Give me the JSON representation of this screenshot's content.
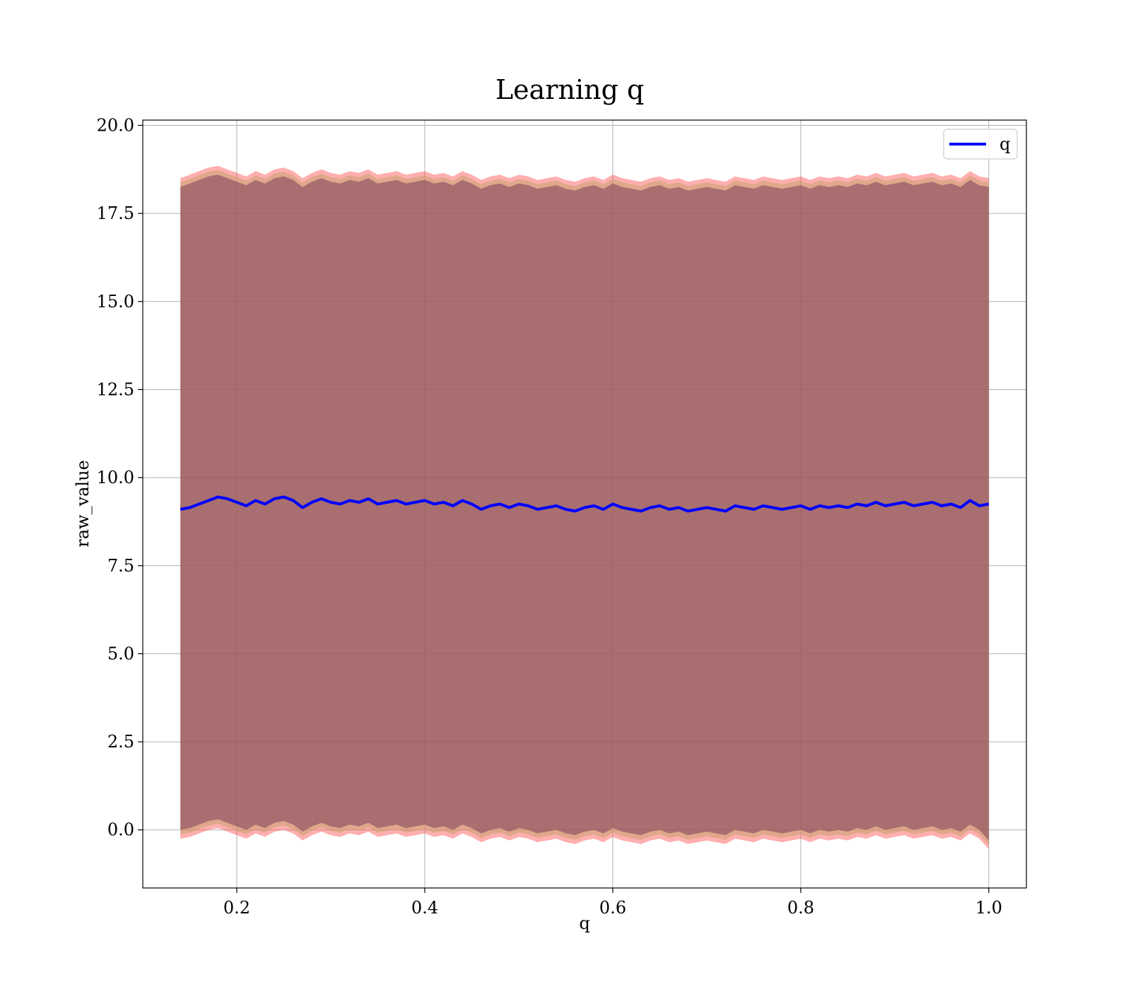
{
  "chart_data": {
    "type": "line",
    "title": "Learning q",
    "xlabel": "q",
    "ylabel": "raw_value",
    "xlim": [
      0.1,
      1.04
    ],
    "ylim": [
      -1.65,
      20.15
    ],
    "xticks": [
      0.2,
      0.4,
      0.6,
      0.8,
      1.0
    ],
    "xtick_labels": [
      "0.2",
      "0.4",
      "0.6",
      "0.8",
      "1.0"
    ],
    "yticks": [
      0.0,
      2.5,
      5.0,
      7.5,
      10.0,
      12.5,
      15.0,
      17.5,
      20.0
    ],
    "ytick_labels": [
      "0.0",
      "2.5",
      "5.0",
      "7.5",
      "10.0",
      "12.5",
      "15.0",
      "17.5",
      "20.0"
    ],
    "grid": true,
    "legend": {
      "position": "upper right",
      "entries": [
        "q"
      ]
    },
    "series": [
      {
        "name": "q",
        "color": "#0000ff",
        "x": [
          0.14,
          0.15,
          0.16,
          0.17,
          0.18,
          0.19,
          0.2,
          0.21,
          0.22,
          0.23,
          0.24,
          0.25,
          0.26,
          0.27,
          0.28,
          0.29,
          0.3,
          0.31,
          0.32,
          0.33,
          0.34,
          0.35,
          0.36,
          0.37,
          0.38,
          0.39,
          0.4,
          0.41,
          0.42,
          0.43,
          0.44,
          0.45,
          0.46,
          0.47,
          0.48,
          0.49,
          0.5,
          0.51,
          0.52,
          0.53,
          0.54,
          0.55,
          0.56,
          0.57,
          0.58,
          0.59,
          0.6,
          0.61,
          0.62,
          0.63,
          0.64,
          0.65,
          0.66,
          0.67,
          0.68,
          0.69,
          0.7,
          0.71,
          0.72,
          0.73,
          0.74,
          0.75,
          0.76,
          0.77,
          0.78,
          0.79,
          0.8,
          0.81,
          0.82,
          0.83,
          0.84,
          0.85,
          0.86,
          0.87,
          0.88,
          0.89,
          0.9,
          0.91,
          0.92,
          0.93,
          0.94,
          0.95,
          0.96,
          0.97,
          0.98,
          0.99,
          1.0
        ],
        "y": [
          9.1,
          9.15,
          9.25,
          9.35,
          9.45,
          9.4,
          9.3,
          9.2,
          9.35,
          9.25,
          9.4,
          9.45,
          9.35,
          9.15,
          9.3,
          9.4,
          9.3,
          9.25,
          9.35,
          9.3,
          9.4,
          9.25,
          9.3,
          9.35,
          9.25,
          9.3,
          9.35,
          9.25,
          9.3,
          9.2,
          9.35,
          9.25,
          9.1,
          9.2,
          9.25,
          9.15,
          9.25,
          9.2,
          9.1,
          9.15,
          9.2,
          9.1,
          9.05,
          9.15,
          9.2,
          9.1,
          9.25,
          9.15,
          9.1,
          9.05,
          9.15,
          9.2,
          9.1,
          9.15,
          9.05,
          9.1,
          9.15,
          9.1,
          9.05,
          9.2,
          9.15,
          9.1,
          9.2,
          9.15,
          9.1,
          9.15,
          9.2,
          9.1,
          9.2,
          9.15,
          9.2,
          9.15,
          9.25,
          9.2,
          9.3,
          9.2,
          9.25,
          9.3,
          9.2,
          9.25,
          9.3,
          9.2,
          9.25,
          9.15,
          9.35,
          9.2,
          9.25
        ]
      }
    ],
    "bands": [
      {
        "color": "#ff4d4d",
        "opacity": 0.45,
        "upper": [
          18.5,
          18.6,
          18.7,
          18.8,
          18.85,
          18.75,
          18.65,
          18.55,
          18.7,
          18.6,
          18.75,
          18.8,
          18.7,
          18.5,
          18.65,
          18.75,
          18.65,
          18.6,
          18.7,
          18.65,
          18.75,
          18.6,
          18.65,
          18.7,
          18.6,
          18.65,
          18.7,
          18.6,
          18.65,
          18.55,
          18.7,
          18.6,
          18.45,
          18.55,
          18.6,
          18.5,
          18.6,
          18.55,
          18.45,
          18.5,
          18.55,
          18.45,
          18.4,
          18.5,
          18.55,
          18.45,
          18.6,
          18.5,
          18.45,
          18.4,
          18.5,
          18.55,
          18.45,
          18.5,
          18.4,
          18.45,
          18.5,
          18.45,
          18.4,
          18.55,
          18.5,
          18.45,
          18.55,
          18.5,
          18.45,
          18.5,
          18.55,
          18.45,
          18.55,
          18.5,
          18.55,
          18.5,
          18.6,
          18.55,
          18.65,
          18.55,
          18.6,
          18.65,
          18.55,
          18.6,
          18.65,
          18.55,
          18.6,
          18.5,
          18.7,
          18.55,
          18.5
        ],
        "lower": [
          -0.25,
          -0.2,
          -0.1,
          0.0,
          0.05,
          -0.05,
          -0.15,
          -0.25,
          -0.1,
          -0.2,
          -0.05,
          0.0,
          -0.1,
          -0.3,
          -0.15,
          -0.05,
          -0.15,
          -0.2,
          -0.1,
          -0.15,
          -0.05,
          -0.2,
          -0.15,
          -0.1,
          -0.2,
          -0.15,
          -0.1,
          -0.2,
          -0.15,
          -0.25,
          -0.1,
          -0.2,
          -0.35,
          -0.25,
          -0.2,
          -0.3,
          -0.2,
          -0.25,
          -0.35,
          -0.3,
          -0.25,
          -0.35,
          -0.4,
          -0.3,
          -0.25,
          -0.35,
          -0.2,
          -0.3,
          -0.35,
          -0.4,
          -0.3,
          -0.25,
          -0.35,
          -0.3,
          -0.4,
          -0.35,
          -0.3,
          -0.35,
          -0.4,
          -0.25,
          -0.3,
          -0.35,
          -0.25,
          -0.3,
          -0.35,
          -0.3,
          -0.25,
          -0.35,
          -0.25,
          -0.3,
          -0.25,
          -0.3,
          -0.2,
          -0.25,
          -0.15,
          -0.25,
          -0.2,
          -0.15,
          -0.25,
          -0.2,
          -0.15,
          -0.25,
          -0.2,
          -0.3,
          -0.1,
          -0.25,
          -0.55
        ]
      },
      {
        "color": "#c8a070",
        "opacity": 0.55,
        "upper": [
          18.38,
          18.48,
          18.58,
          18.68,
          18.73,
          18.63,
          18.53,
          18.43,
          18.58,
          18.48,
          18.63,
          18.68,
          18.58,
          18.38,
          18.53,
          18.63,
          18.53,
          18.48,
          18.58,
          18.53,
          18.63,
          18.48,
          18.53,
          18.58,
          18.48,
          18.53,
          18.58,
          18.48,
          18.53,
          18.43,
          18.58,
          18.48,
          18.33,
          18.43,
          18.48,
          18.38,
          18.48,
          18.43,
          18.33,
          18.38,
          18.43,
          18.33,
          18.28,
          18.38,
          18.43,
          18.33,
          18.48,
          18.38,
          18.33,
          18.28,
          18.38,
          18.43,
          18.33,
          18.38,
          18.28,
          18.33,
          18.38,
          18.33,
          18.28,
          18.43,
          18.38,
          18.33,
          18.43,
          18.38,
          18.33,
          18.38,
          18.43,
          18.33,
          18.43,
          18.38,
          18.43,
          18.38,
          18.48,
          18.43,
          18.53,
          18.43,
          18.48,
          18.53,
          18.43,
          18.48,
          18.53,
          18.43,
          18.48,
          18.38,
          18.58,
          18.43,
          18.38
        ],
        "lower": [
          -0.13,
          -0.08,
          0.02,
          0.12,
          0.17,
          0.07,
          -0.03,
          -0.13,
          0.02,
          -0.08,
          0.07,
          0.12,
          0.02,
          -0.18,
          -0.03,
          0.07,
          -0.03,
          -0.08,
          0.02,
          -0.03,
          0.07,
          -0.08,
          -0.03,
          0.02,
          -0.08,
          -0.03,
          0.02,
          -0.08,
          -0.03,
          -0.13,
          0.02,
          -0.08,
          -0.23,
          -0.13,
          -0.08,
          -0.18,
          -0.08,
          -0.13,
          -0.23,
          -0.18,
          -0.13,
          -0.23,
          -0.28,
          -0.18,
          -0.13,
          -0.23,
          -0.08,
          -0.18,
          -0.23,
          -0.28,
          -0.18,
          -0.13,
          -0.23,
          -0.18,
          -0.28,
          -0.23,
          -0.18,
          -0.23,
          -0.28,
          -0.13,
          -0.18,
          -0.23,
          -0.13,
          -0.18,
          -0.23,
          -0.18,
          -0.13,
          -0.23,
          -0.13,
          -0.18,
          -0.13,
          -0.18,
          -0.08,
          -0.13,
          -0.03,
          -0.13,
          -0.08,
          -0.03,
          -0.13,
          -0.08,
          -0.03,
          -0.13,
          -0.08,
          -0.18,
          0.02,
          -0.13,
          -0.43
        ]
      },
      {
        "color": "#7a3f5a",
        "opacity": 0.55,
        "upper": [
          18.25,
          18.35,
          18.45,
          18.55,
          18.6,
          18.5,
          18.4,
          18.3,
          18.45,
          18.35,
          18.5,
          18.55,
          18.45,
          18.25,
          18.4,
          18.5,
          18.4,
          18.35,
          18.45,
          18.4,
          18.5,
          18.35,
          18.4,
          18.45,
          18.35,
          18.4,
          18.45,
          18.35,
          18.4,
          18.3,
          18.45,
          18.35,
          18.2,
          18.3,
          18.35,
          18.25,
          18.35,
          18.3,
          18.2,
          18.25,
          18.3,
          18.2,
          18.15,
          18.25,
          18.3,
          18.2,
          18.35,
          18.25,
          18.2,
          18.15,
          18.25,
          18.3,
          18.2,
          18.25,
          18.15,
          18.2,
          18.25,
          18.2,
          18.15,
          18.3,
          18.25,
          18.2,
          18.3,
          18.25,
          18.2,
          18.25,
          18.3,
          18.2,
          18.3,
          18.25,
          18.3,
          18.25,
          18.35,
          18.3,
          18.4,
          18.3,
          18.35,
          18.4,
          18.3,
          18.35,
          18.4,
          18.3,
          18.35,
          18.25,
          18.45,
          18.3,
          18.25
        ],
        "lower": [
          0.0,
          0.05,
          0.15,
          0.25,
          0.3,
          0.2,
          0.1,
          0.0,
          0.15,
          0.05,
          0.2,
          0.25,
          0.15,
          -0.05,
          0.1,
          0.2,
          0.1,
          0.05,
          0.15,
          0.1,
          0.2,
          0.05,
          0.1,
          0.15,
          0.05,
          0.1,
          0.15,
          0.05,
          0.1,
          0.0,
          0.15,
          0.05,
          -0.1,
          0.0,
          0.05,
          -0.05,
          0.05,
          0.0,
          -0.1,
          -0.05,
          0.0,
          -0.1,
          -0.15,
          -0.05,
          0.0,
          -0.1,
          0.05,
          -0.05,
          -0.1,
          -0.15,
          -0.05,
          0.0,
          -0.1,
          -0.05,
          -0.15,
          -0.1,
          -0.05,
          -0.1,
          -0.15,
          0.0,
          -0.05,
          -0.1,
          0.0,
          -0.05,
          -0.1,
          -0.05,
          0.0,
          -0.1,
          0.0,
          -0.05,
          0.0,
          -0.05,
          0.05,
          0.0,
          0.1,
          0.0,
          0.05,
          0.1,
          0.0,
          0.05,
          0.1,
          0.0,
          0.05,
          -0.05,
          0.15,
          0.0,
          -0.3
        ]
      }
    ]
  }
}
